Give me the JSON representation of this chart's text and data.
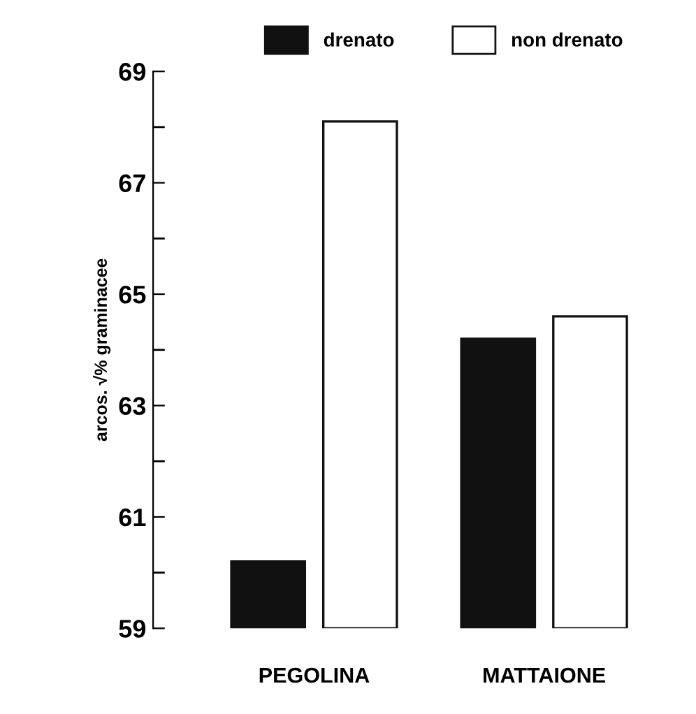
{
  "chart_data": {
    "type": "bar",
    "ylabel": "arcos. √% graminacee",
    "categories": [
      "PEGOLINA",
      "MATTAIONE"
    ],
    "series": [
      {
        "name": "drenato",
        "color": "#111111",
        "values": [
          60.2,
          64.2
        ]
      },
      {
        "name": "non drenato",
        "color": "#ffffff",
        "values": [
          68.1,
          64.6
        ]
      }
    ],
    "ylim": [
      59,
      69
    ],
    "yticks": [
      59,
      61,
      63,
      65,
      67,
      69
    ],
    "grid": false,
    "legend": "top"
  }
}
